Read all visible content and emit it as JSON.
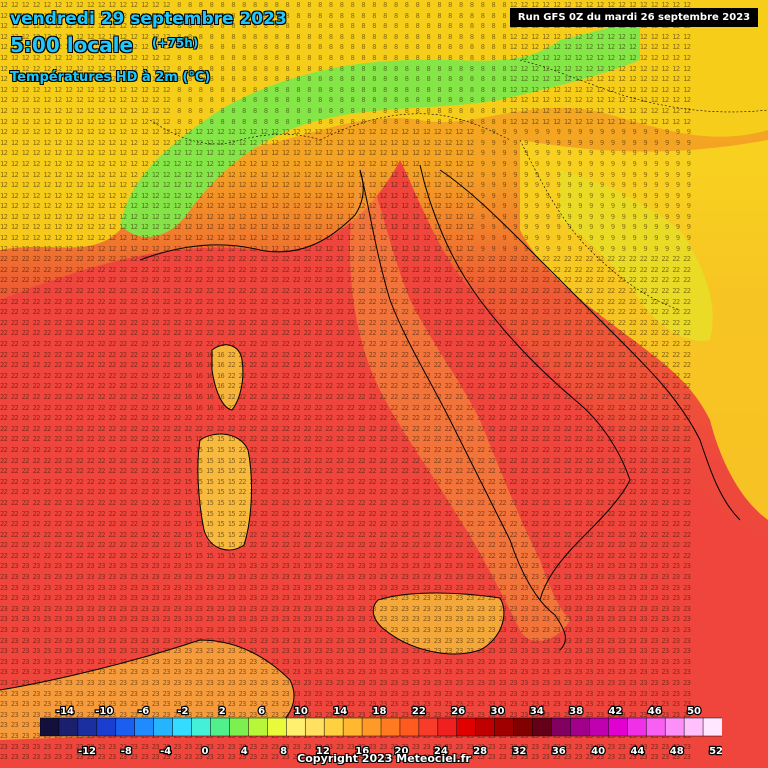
{
  "header": {
    "date": "vendredi 29 septembre 2023",
    "local_time": "5:00 locale",
    "lead_time": "(+75h)",
    "parameter": "Températures HD à 2m (°C)"
  },
  "run_info": "Run GFS 0Z du mardi 26 septembre 2023",
  "copyright": "Copyright 2023 Meteociel.fr",
  "region": "Italy",
  "grid_values_sample": {
    "alps": "8",
    "po_valley": "12",
    "tyrrhenian_sea": "22",
    "corsica": "16",
    "sardinia": "15",
    "sicily_sea": "23",
    "balkans": "9"
  },
  "legend": {
    "upper_labels": [
      "-14",
      "-10",
      "-6",
      "-2",
      "2",
      "6",
      "10",
      "14",
      "18",
      "22",
      "26",
      "30",
      "34",
      "38",
      "42",
      "46",
      "50"
    ],
    "lower_labels": [
      "-12",
      "-8",
      "-4",
      "0",
      "4",
      "8",
      "12",
      "16",
      "20",
      "24",
      "28",
      "32",
      "36",
      "40",
      "44",
      "48",
      "52"
    ],
    "colors": [
      "#14103c",
      "#1a1f6e",
      "#1b2fa0",
      "#1a3fd0",
      "#1a5ff0",
      "#1f8bff",
      "#26b4ff",
      "#34dcff",
      "#44f0d8",
      "#52f08c",
      "#7cf050",
      "#b8f63a",
      "#e8fa3a",
      "#fff070",
      "#ffe060",
      "#ffd040",
      "#ffb830",
      "#ff9a28",
      "#ff7a20",
      "#ff5a20",
      "#f83c2a",
      "#f02020",
      "#e00000",
      "#c00000",
      "#a00000",
      "#820000",
      "#640018",
      "#820060",
      "#a0008a",
      "#c000b0",
      "#e000d0",
      "#f030e8",
      "#f860f4",
      "#fc90f8",
      "#ffc0fc",
      "#ffe8ff"
    ]
  }
}
